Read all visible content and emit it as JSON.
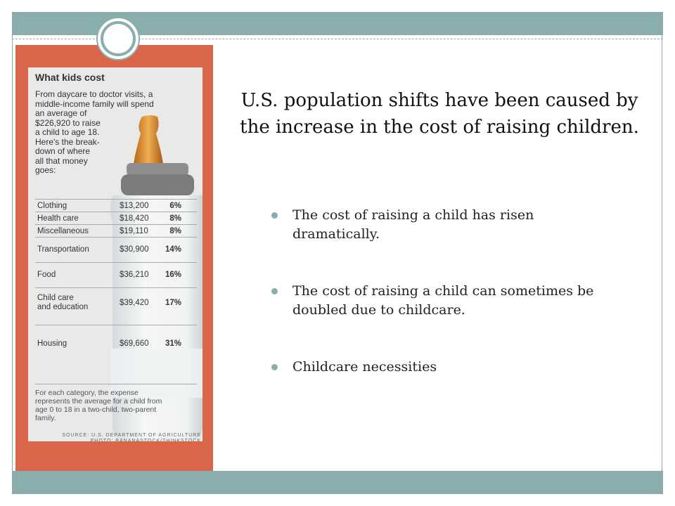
{
  "infographic": {
    "title": "What kids cost",
    "intro_lines": [
      "From daycare to doctor visits, a",
      "middle-income family will spend",
      "an average of",
      "$226,920 to raise",
      "a child to age 18.",
      "Here's the break-",
      "down of where",
      "all that money",
      "goes:"
    ],
    "rows": [
      {
        "category": [
          "Clothing"
        ],
        "amount": "$13,200",
        "percent": "6%"
      },
      {
        "category": [
          "Health care"
        ],
        "amount": "$18,420",
        "percent": "8%"
      },
      {
        "category": [
          "Miscellaneous"
        ],
        "amount": "$19,110",
        "percent": "8%"
      },
      {
        "category": [
          "Transportation"
        ],
        "amount": "$30,900",
        "percent": "14%"
      },
      {
        "category": [
          "Food"
        ],
        "amount": "$36,210",
        "percent": "16%"
      },
      {
        "category": [
          "Child care",
          "and education"
        ],
        "amount": "$39,420",
        "percent": "17%"
      },
      {
        "category": [
          "Housing"
        ],
        "amount": "$69,660",
        "percent": "31%"
      }
    ],
    "footnote_lines": [
      "For each category, the expense",
      "represents the average for a child from",
      "age 0 to 18 in a two-child, two-parent",
      "family."
    ],
    "source_lines": [
      "SOURCE: U.S. DEPARTMENT OF AGRICULTURE",
      "PHOTO: BANANASTOCK/THINKSTOCK"
    ]
  },
  "slide": {
    "title": "U.S. population shifts have been caused by the increase in the cost of raising children.",
    "bullets": [
      "The cost of raising a child has risen dramatically.",
      "The cost of raising a child can sometimes be doubled due to childcare.",
      "Childcare necessities"
    ]
  }
}
